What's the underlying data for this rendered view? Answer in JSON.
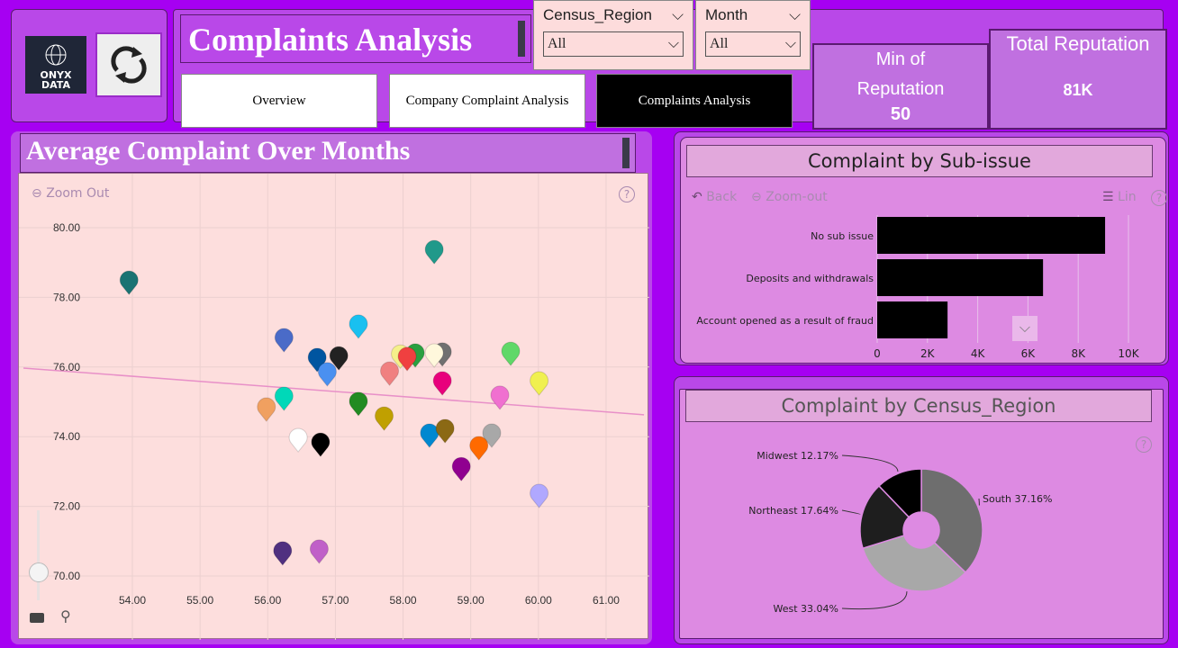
{
  "header": {
    "logo_text": "ONYX DATA",
    "title": "Complaints Analysis"
  },
  "tabs": [
    {
      "label": "Overview",
      "active": false
    },
    {
      "label": "Company Complaint Analysis",
      "active": false
    },
    {
      "label": "Complaints Analysis",
      "active": true
    }
  ],
  "slicers": [
    {
      "label": "Census_Region",
      "value": "All"
    },
    {
      "label": "Month",
      "value": "All"
    }
  ],
  "kpis": {
    "min_label_1": "Min of",
    "min_label_2": "Reputation",
    "min_value": "50",
    "total_label": "Total Reputation",
    "total_value": "81K"
  },
  "colors": {
    "background": "#a600f2",
    "panel": "#b948e8",
    "chart_panel": "#dd8ae2",
    "plot_bg": "#fddedd",
    "trend": "#e890c8"
  },
  "scatter": {
    "title": "Average Complaint Over Months",
    "zoom_out": "Zoom Out",
    "help": "?"
  },
  "subissue": {
    "title": "Complaint by Sub-issue",
    "back": "Back",
    "zoom_out": "Zoom-out",
    "lin": "Lin",
    "help": "?"
  },
  "region": {
    "title": "Complaint by Census_Region",
    "help": "?"
  },
  "chart_data": [
    {
      "type": "scatter",
      "title": "Average Complaint Over Months",
      "xlim": [
        53.2,
        61.6
      ],
      "ylim": [
        69.5,
        81
      ],
      "xticks": [
        "54.00",
        "55.00",
        "56.00",
        "57.00",
        "58.00",
        "59.00",
        "60.00",
        "61.00"
      ],
      "yticks": [
        "70.00",
        "72.00",
        "74.00",
        "76.00",
        "78.00",
        "80.00"
      ],
      "grid": true,
      "trendline": [
        [
          52.39,
          75.97
        ],
        [
          61.56,
          74.63
        ]
      ],
      "points": [
        {
          "x": 53.95,
          "y": 78.42,
          "color": "#1a7373"
        },
        {
          "x": 58.46,
          "y": 79.3,
          "color": "#20998a"
        },
        {
          "x": 56.24,
          "y": 76.77,
          "color": "#4a6bc8"
        },
        {
          "x": 57.34,
          "y": 77.16,
          "color": "#19c0f0"
        },
        {
          "x": 56.73,
          "y": 76.2,
          "color": "#0055a0"
        },
        {
          "x": 57.05,
          "y": 76.25,
          "color": "#222222"
        },
        {
          "x": 56.88,
          "y": 75.79,
          "color": "#4a90f0"
        },
        {
          "x": 57.96,
          "y": 76.3,
          "color": "#f5f08a"
        },
        {
          "x": 58.18,
          "y": 76.33,
          "color": "#2aa040"
        },
        {
          "x": 58.06,
          "y": 76.23,
          "color": "#f04040"
        },
        {
          "x": 57.8,
          "y": 75.81,
          "color": "#f08080"
        },
        {
          "x": 58.58,
          "y": 76.36,
          "color": "#707070"
        },
        {
          "x": 58.46,
          "y": 76.33,
          "color": "#fff8dc"
        },
        {
          "x": 59.59,
          "y": 76.38,
          "color": "#60d868"
        },
        {
          "x": 58.58,
          "y": 75.53,
          "color": "#e8007c"
        },
        {
          "x": 60.01,
          "y": 75.53,
          "color": "#f0f050"
        },
        {
          "x": 59.43,
          "y": 75.12,
          "color": "#f070d0"
        },
        {
          "x": 56.24,
          "y": 75.09,
          "color": "#00d8b8"
        },
        {
          "x": 55.98,
          "y": 74.78,
          "color": "#f0a060"
        },
        {
          "x": 57.34,
          "y": 74.94,
          "color": "#228b22"
        },
        {
          "x": 57.72,
          "y": 74.52,
          "color": "#c0a000"
        },
        {
          "x": 56.45,
          "y": 73.9,
          "color": "#ffffff"
        },
        {
          "x": 56.78,
          "y": 73.77,
          "color": "#000000"
        },
        {
          "x": 58.39,
          "y": 74.03,
          "color": "#0088d0"
        },
        {
          "x": 58.62,
          "y": 74.16,
          "color": "#8b6914"
        },
        {
          "x": 59.31,
          "y": 74.03,
          "color": "#a8a8a8"
        },
        {
          "x": 59.12,
          "y": 73.67,
          "color": "#ff6a00"
        },
        {
          "x": 58.86,
          "y": 73.07,
          "color": "#900090"
        },
        {
          "x": 60.01,
          "y": 72.3,
          "color": "#b0a8ff"
        },
        {
          "x": 56.22,
          "y": 70.65,
          "color": "#503080"
        },
        {
          "x": 56.76,
          "y": 70.7,
          "color": "#c060c8"
        }
      ]
    },
    {
      "type": "bar",
      "orientation": "horizontal",
      "title": "Complaint by Sub-issue",
      "categories": [
        "No sub issue",
        "Deposits and withdrawals",
        "Account opened as a result of fraud"
      ],
      "values": [
        9070,
        6600,
        2800
      ],
      "xlim": [
        0,
        10000
      ],
      "xticks": [
        "0",
        "2K",
        "4K",
        "6K",
        "8K",
        "10K"
      ],
      "color": "#000000"
    },
    {
      "type": "pie",
      "donut": true,
      "title": "Complaint by Census_Region",
      "slices": [
        {
          "label": "South 37.16%",
          "value": 37.16,
          "color": "#6e6e6e"
        },
        {
          "label": "West 33.04%",
          "value": 33.04,
          "color": "#a8a8a8"
        },
        {
          "label": "Northeast 17.64%",
          "value": 17.64,
          "color": "#1e1e1e"
        },
        {
          "label": "Midwest 12.17%",
          "value": 12.17,
          "color": "#000000"
        }
      ]
    }
  ]
}
